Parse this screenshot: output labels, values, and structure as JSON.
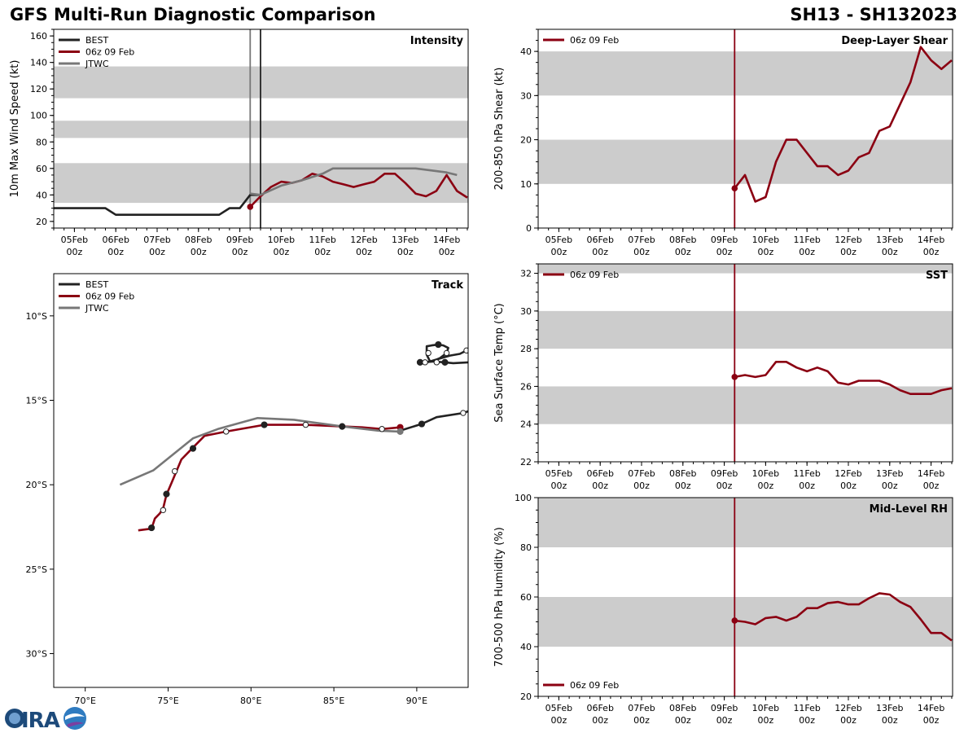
{
  "header": {
    "title_left": "GFS Multi-Run Diagnostic Comparison",
    "title_right": "SH13 - SH132023"
  },
  "time_ticks": [
    {
      "day": 5,
      "label": "05Feb",
      "sub": "00z"
    },
    {
      "day": 6,
      "label": "06Feb",
      "sub": "00z"
    },
    {
      "day": 7,
      "label": "07Feb",
      "sub": "00z"
    },
    {
      "day": 8,
      "label": "08Feb",
      "sub": "00z"
    },
    {
      "day": 9,
      "label": "09Feb",
      "sub": "00z"
    },
    {
      "day": 10,
      "label": "10Feb",
      "sub": "00z"
    },
    {
      "day": 11,
      "label": "11Feb",
      "sub": "00z"
    },
    {
      "day": 12,
      "label": "12Feb",
      "sub": "00z"
    },
    {
      "day": 13,
      "label": "13Feb",
      "sub": "00z"
    },
    {
      "day": 14,
      "label": "14Feb",
      "sub": "00z"
    }
  ],
  "colors": {
    "best": "#222222",
    "gfs": "#8b0012",
    "jtwc": "#777777",
    "band": "#cccccc"
  },
  "chart_data": [
    {
      "id": "intensity",
      "type": "line",
      "title": "Intensity",
      "ylabel": "10m Max Wind Speed (kt)",
      "xlim": [
        4.5,
        14.52
      ],
      "ylim": [
        15,
        165
      ],
      "yticks": [
        20,
        40,
        60,
        80,
        100,
        120,
        140,
        160
      ],
      "bands": [
        [
          34,
          64
        ],
        [
          83,
          96
        ],
        [
          113,
          137
        ]
      ],
      "legend": [
        "BEST",
        "06z 09 Feb",
        "JTWC"
      ],
      "vlines": [
        {
          "x": 9.25,
          "color": "#777777"
        },
        {
          "x": 9.5,
          "color": "#222222"
        }
      ],
      "series": [
        {
          "name": "BEST",
          "color_key": "best",
          "x": [
            4.5,
            5.75,
            6.0,
            8.25,
            8.5,
            8.75,
            9.0,
            9.25,
            9.5
          ],
          "y": [
            30,
            30,
            25,
            25,
            25,
            30,
            30,
            40,
            40
          ]
        },
        {
          "name": "06z 09 Feb",
          "color_key": "gfs",
          "marker_start": true,
          "x": [
            9.25,
            9.5,
            9.75,
            10.0,
            10.25,
            10.5,
            10.75,
            11.0,
            11.25,
            11.5,
            11.75,
            12.0,
            12.25,
            12.5,
            12.75,
            13.0,
            13.25,
            13.5,
            13.75,
            14.0,
            14.25,
            14.5
          ],
          "y": [
            31,
            39,
            46,
            50,
            49,
            51,
            56,
            54,
            50,
            48,
            46,
            48,
            50,
            56,
            56,
            49,
            41,
            39,
            43,
            55,
            43,
            38
          ]
        },
        {
          "name": "JTWC",
          "color_key": "jtwc",
          "x": [
            9.25,
            9.5,
            10.0,
            10.5,
            11.0,
            11.25,
            12.0,
            13.0,
            13.25,
            14.0,
            14.25
          ],
          "y": [
            41,
            40,
            47,
            51,
            56,
            60,
            60,
            60,
            60,
            57,
            55
          ]
        }
      ]
    },
    {
      "id": "shear",
      "type": "line",
      "title": "Deep-Layer Shear",
      "ylabel": "200-850 hPa Shear (kt)",
      "xlim": [
        4.5,
        14.52
      ],
      "ylim": [
        0,
        45
      ],
      "yticks": [
        0,
        10,
        20,
        30,
        40
      ],
      "bands": [
        [
          10,
          20
        ],
        [
          30,
          40
        ]
      ],
      "legend": [
        "06z 09 Feb"
      ],
      "vlines": [
        {
          "x": 9.25,
          "color": "#8b0012"
        }
      ],
      "series": [
        {
          "name": "06z 09 Feb",
          "color_key": "gfs",
          "marker_start": true,
          "x": [
            9.25,
            9.5,
            9.75,
            10.0,
            10.25,
            10.5,
            10.75,
            11.0,
            11.25,
            11.5,
            11.75,
            12.0,
            12.25,
            12.5,
            12.75,
            13.0,
            13.25,
            13.5,
            13.75,
            14.0,
            14.25,
            14.5
          ],
          "y": [
            9,
            12,
            6,
            7,
            15,
            20,
            20,
            17,
            14,
            14,
            12,
            13,
            16,
            17,
            22,
            23,
            28,
            33,
            41,
            38,
            36,
            38
          ]
        }
      ]
    },
    {
      "id": "sst",
      "type": "line",
      "title": "SST",
      "ylabel": "Sea Surface Temp (°C)",
      "xlim": [
        4.5,
        14.52
      ],
      "ylim": [
        22,
        32.5
      ],
      "yticks": [
        22,
        24,
        26,
        28,
        30,
        32
      ],
      "bands": [
        [
          24,
          26
        ],
        [
          28,
          30
        ],
        [
          32,
          33
        ]
      ],
      "legend": [
        "06z 09 Feb"
      ],
      "vlines": [
        {
          "x": 9.25,
          "color": "#8b0012"
        }
      ],
      "series": [
        {
          "name": "06z 09 Feb",
          "color_key": "gfs",
          "marker_start": true,
          "x": [
            9.25,
            9.5,
            9.75,
            10.0,
            10.25,
            10.5,
            10.75,
            11.0,
            11.25,
            11.5,
            11.75,
            12.0,
            12.25,
            12.5,
            12.75,
            13.0,
            13.25,
            13.5,
            13.75,
            14.0,
            14.25,
            14.5
          ],
          "y": [
            26.5,
            26.6,
            26.5,
            26.6,
            27.3,
            27.3,
            27.0,
            26.8,
            27.0,
            26.8,
            26.2,
            26.1,
            26.3,
            26.3,
            26.3,
            26.1,
            25.8,
            25.6,
            25.6,
            25.6,
            25.8,
            25.9
          ]
        }
      ]
    },
    {
      "id": "rh",
      "type": "line",
      "title": "Mid-Level RH",
      "ylabel": "700-500 hPa Humidity (%)",
      "xlim": [
        4.5,
        14.52
      ],
      "ylim": [
        20,
        100
      ],
      "yticks": [
        20,
        40,
        60,
        80,
        100
      ],
      "bands": [
        [
          40,
          60
        ],
        [
          80,
          100
        ]
      ],
      "legend": [
        "06z 09 Feb"
      ],
      "legend_pos": "bottom-left",
      "vlines": [
        {
          "x": 9.25,
          "color": "#8b0012"
        }
      ],
      "series": [
        {
          "name": "06z 09 Feb",
          "color_key": "gfs",
          "marker_start": true,
          "x": [
            9.25,
            9.5,
            9.75,
            10.0,
            10.25,
            10.5,
            10.75,
            11.0,
            11.25,
            11.5,
            11.75,
            12.0,
            12.25,
            12.5,
            12.75,
            13.0,
            13.25,
            13.5,
            13.75,
            14.0,
            14.25,
            14.5
          ],
          "y": [
            50.5,
            50,
            49,
            51.5,
            52,
            50.5,
            52,
            55.5,
            55.5,
            57.5,
            58,
            57,
            57,
            59.5,
            61.5,
            61,
            58,
            56,
            51,
            45.5,
            45.5,
            42.5
          ]
        }
      ]
    },
    {
      "id": "track",
      "type": "scatter",
      "title": "Track",
      "legend": [
        "BEST",
        "06z 09 Feb",
        "JTWC"
      ],
      "xlim": [
        68.1,
        93.1
      ],
      "ylim": [
        -32,
        -7.5
      ],
      "xticks": [
        {
          "v": 70,
          "label": "70°E"
        },
        {
          "v": 75,
          "label": "75°E"
        },
        {
          "v": 80,
          "label": "80°E"
        },
        {
          "v": 85,
          "label": "85°E"
        },
        {
          "v": 90,
          "label": "90°E"
        }
      ],
      "yticks": [
        {
          "v": -10,
          "label": "10°S"
        },
        {
          "v": -15,
          "label": "15°S"
        },
        {
          "v": -20,
          "label": "20°S"
        },
        {
          "v": -25,
          "label": "25°S"
        },
        {
          "v": -30,
          "label": "30°S"
        }
      ],
      "series": [
        {
          "name": "BEST-loop",
          "color_key": "best",
          "lon": [
            90.2,
            91.0,
            91.7,
            92.2,
            93.1
          ],
          "lat": [
            -12.75,
            -12.7,
            -12.75,
            -12.8,
            -12.75
          ],
          "markers": [
            {
              "lon": 90.2,
              "lat": -12.75,
              "fill": true
            },
            {
              "lon": 90.5,
              "lat": -12.75,
              "fill": false
            },
            {
              "lon": 91.2,
              "lat": -12.75,
              "fill": false
            },
            {
              "lon": 91.7,
              "lat": -12.75,
              "fill": true
            }
          ]
        },
        {
          "name": "BEST-loop2",
          "color_key": "best",
          "lon": [
            90.5,
            90.9,
            91.4,
            91.8,
            91.9,
            91.6,
            91.3,
            90.9,
            90.6,
            90.6,
            90.8,
            91.3,
            92.0,
            92.6,
            93.1
          ],
          "lat": [
            -12.75,
            -12.7,
            -12.5,
            -12.2,
            -11.9,
            -11.75,
            -11.7,
            -11.75,
            -11.8,
            -12.3,
            -12.7,
            -12.55,
            -12.35,
            -12.25,
            -12.0
          ],
          "markers": [
            {
              "lon": 91.3,
              "lat": -11.7,
              "fill": true
            },
            {
              "lon": 90.7,
              "lat": -12.2,
              "fill": false
            },
            {
              "lon": 91.8,
              "lat": -12.2,
              "fill": false
            },
            {
              "lon": 93.0,
              "lat": -12.05,
              "fill": false
            }
          ]
        },
        {
          "name": "BEST",
          "color_key": "best",
          "lon": [
            93.1,
            92.8,
            91.2,
            90.3,
            89.0
          ],
          "lat": [
            -15.65,
            -15.75,
            -16.0,
            -16.4,
            -16.8
          ],
          "markers": [
            {
              "lon": 92.8,
              "lat": -15.75,
              "fill": false
            },
            {
              "lon": 90.3,
              "lat": -16.4,
              "fill": true
            }
          ]
        },
        {
          "name": "06z 09 Feb",
          "color_key": "gfs",
          "lon": [
            89.0,
            87.9,
            86.7,
            85.5,
            83.3,
            80.8,
            78.5,
            77.2,
            76.5,
            75.8,
            75.5,
            75.2,
            74.9,
            74.7,
            74.5,
            74.2,
            74.0,
            73.2
          ],
          "lat": [
            -16.6,
            -16.7,
            -16.6,
            -16.55,
            -16.45,
            -16.45,
            -16.85,
            -17.1,
            -17.8,
            -18.5,
            -19.2,
            -19.9,
            -20.6,
            -21.4,
            -21.7,
            -22.0,
            -22.6,
            -22.7
          ],
          "markers": [
            {
              "lon": 89.0,
              "lat": -16.6,
              "fill": true,
              "color_key": "gfs"
            },
            {
              "lon": 87.9,
              "lat": -16.7,
              "fill": false
            },
            {
              "lon": 85.5,
              "lat": -16.55,
              "fill": true
            },
            {
              "lon": 83.3,
              "lat": -16.45,
              "fill": false
            },
            {
              "lon": 80.8,
              "lat": -16.45,
              "fill": true
            },
            {
              "lon": 78.5,
              "lat": -16.85,
              "fill": false
            },
            {
              "lon": 76.5,
              "lat": -17.85,
              "fill": true
            },
            {
              "lon": 75.4,
              "lat": -19.2,
              "fill": false
            },
            {
              "lon": 74.9,
              "lat": -20.55,
              "fill": true
            },
            {
              "lon": 74.7,
              "lat": -21.5,
              "fill": false
            },
            {
              "lon": 74.0,
              "lat": -22.55,
              "fill": true
            }
          ]
        },
        {
          "name": "JTWC",
          "color_key": "jtwc",
          "lon": [
            89.0,
            87.7,
            85.5,
            82.6,
            80.4,
            78.0,
            76.5,
            74.1,
            72.1
          ],
          "lat": [
            -16.85,
            -16.8,
            -16.55,
            -16.15,
            -16.05,
            -16.7,
            -17.25,
            -19.15,
            -20.0
          ],
          "markers": [
            {
              "lon": 89.0,
              "lat": -16.85,
              "fill": true,
              "color_key": "jtwc"
            }
          ]
        }
      ]
    }
  ]
}
